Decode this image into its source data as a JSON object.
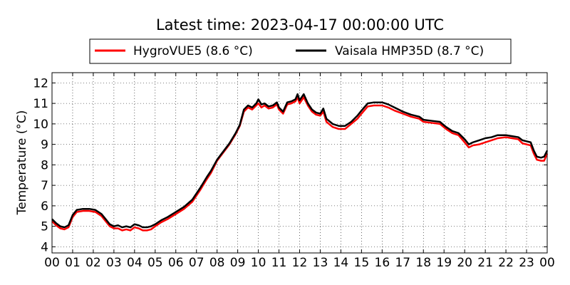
{
  "chart_data": {
    "type": "line",
    "title": "Latest time: 2023-04-17 00:00:00 UTC",
    "xlabel": "",
    "ylabel": "Temperature (°C)",
    "xlim": [
      0,
      24
    ],
    "ylim": [
      3.7,
      12.5
    ],
    "x_ticks": [
      0,
      1,
      2,
      3,
      4,
      5,
      6,
      7,
      8,
      9,
      10,
      11,
      12,
      13,
      14,
      15,
      16,
      17,
      18,
      19,
      20,
      21,
      22,
      23,
      24
    ],
    "x_tick_labels": [
      "00",
      "01",
      "02",
      "03",
      "04",
      "05",
      "06",
      "07",
      "08",
      "09",
      "10",
      "11",
      "12",
      "13",
      "14",
      "15",
      "16",
      "17",
      "18",
      "19",
      "20",
      "21",
      "22",
      "23",
      "00"
    ],
    "y_ticks": [
      4,
      5,
      6,
      7,
      8,
      9,
      10,
      11,
      12
    ],
    "y_tick_labels": [
      "4",
      "5",
      "6",
      "7",
      "8",
      "9",
      "10",
      "11",
      "12"
    ],
    "grid": true,
    "legend_position": "top-center",
    "series": [
      {
        "name": "HygroVUE5 (8.6 °C)",
        "color": "#ff0000",
        "points": [
          [
            0.0,
            5.25
          ],
          [
            0.2,
            5.05
          ],
          [
            0.4,
            4.9
          ],
          [
            0.6,
            4.85
          ],
          [
            0.8,
            4.95
          ],
          [
            1.0,
            5.45
          ],
          [
            1.2,
            5.7
          ],
          [
            1.5,
            5.75
          ],
          [
            1.8,
            5.75
          ],
          [
            2.1,
            5.7
          ],
          [
            2.4,
            5.5
          ],
          [
            2.6,
            5.25
          ],
          [
            2.8,
            5.0
          ],
          [
            3.0,
            4.9
          ],
          [
            3.2,
            4.9
          ],
          [
            3.4,
            4.8
          ],
          [
            3.6,
            4.85
          ],
          [
            3.8,
            4.8
          ],
          [
            4.0,
            4.95
          ],
          [
            4.2,
            4.9
          ],
          [
            4.4,
            4.8
          ],
          [
            4.6,
            4.8
          ],
          [
            4.8,
            4.85
          ],
          [
            5.0,
            5.0
          ],
          [
            5.3,
            5.2
          ],
          [
            5.6,
            5.35
          ],
          [
            6.0,
            5.6
          ],
          [
            6.4,
            5.85
          ],
          [
            6.8,
            6.2
          ],
          [
            7.2,
            6.8
          ],
          [
            7.5,
            7.3
          ],
          [
            7.7,
            7.6
          ],
          [
            8.0,
            8.2
          ],
          [
            8.3,
            8.6
          ],
          [
            8.6,
            9.0
          ],
          [
            8.9,
            9.5
          ],
          [
            9.1,
            9.9
          ],
          [
            9.3,
            10.6
          ],
          [
            9.5,
            10.8
          ],
          [
            9.7,
            10.7
          ],
          [
            9.9,
            10.9
          ],
          [
            10.0,
            11.0
          ],
          [
            10.15,
            10.8
          ],
          [
            10.3,
            10.9
          ],
          [
            10.5,
            10.75
          ],
          [
            10.7,
            10.8
          ],
          [
            10.9,
            10.95
          ],
          [
            11.0,
            10.7
          ],
          [
            11.2,
            10.5
          ],
          [
            11.4,
            10.95
          ],
          [
            11.6,
            11.0
          ],
          [
            11.8,
            11.1
          ],
          [
            11.9,
            11.3
          ],
          [
            12.0,
            11.0
          ],
          [
            12.2,
            11.3
          ],
          [
            12.4,
            10.9
          ],
          [
            12.6,
            10.6
          ],
          [
            12.8,
            10.45
          ],
          [
            13.0,
            10.4
          ],
          [
            13.15,
            10.6
          ],
          [
            13.3,
            10.1
          ],
          [
            13.6,
            9.85
          ],
          [
            13.9,
            9.75
          ],
          [
            14.2,
            9.75
          ],
          [
            14.5,
            10.0
          ],
          [
            14.8,
            10.25
          ],
          [
            15.0,
            10.5
          ],
          [
            15.3,
            10.85
          ],
          [
            15.6,
            10.9
          ],
          [
            16.0,
            10.9
          ],
          [
            16.3,
            10.8
          ],
          [
            16.6,
            10.65
          ],
          [
            17.0,
            10.5
          ],
          [
            17.4,
            10.35
          ],
          [
            17.8,
            10.25
          ],
          [
            18.0,
            10.1
          ],
          [
            18.4,
            10.05
          ],
          [
            18.8,
            10.0
          ],
          [
            19.1,
            9.75
          ],
          [
            19.4,
            9.55
          ],
          [
            19.7,
            9.45
          ],
          [
            20.0,
            9.1
          ],
          [
            20.2,
            8.85
          ],
          [
            20.4,
            8.95
          ],
          [
            20.7,
            9.0
          ],
          [
            21.0,
            9.1
          ],
          [
            21.3,
            9.2
          ],
          [
            21.6,
            9.3
          ],
          [
            22.0,
            9.35
          ],
          [
            22.3,
            9.3
          ],
          [
            22.6,
            9.25
          ],
          [
            22.8,
            9.05
          ],
          [
            23.0,
            9.0
          ],
          [
            23.2,
            8.95
          ],
          [
            23.35,
            8.55
          ],
          [
            23.5,
            8.25
          ],
          [
            23.7,
            8.2
          ],
          [
            23.85,
            8.2
          ],
          [
            24.0,
            8.55
          ]
        ]
      },
      {
        "name": "Vaisala HMP35D (8.7 °C)",
        "color": "#000000",
        "points": [
          [
            0.0,
            5.35
          ],
          [
            0.2,
            5.15
          ],
          [
            0.4,
            5.0
          ],
          [
            0.6,
            4.95
          ],
          [
            0.8,
            5.05
          ],
          [
            1.0,
            5.55
          ],
          [
            1.2,
            5.8
          ],
          [
            1.5,
            5.85
          ],
          [
            1.8,
            5.85
          ],
          [
            2.1,
            5.8
          ],
          [
            2.4,
            5.6
          ],
          [
            2.6,
            5.35
          ],
          [
            2.8,
            5.1
          ],
          [
            3.0,
            5.0
          ],
          [
            3.2,
            5.05
          ],
          [
            3.4,
            4.95
          ],
          [
            3.6,
            5.0
          ],
          [
            3.8,
            4.95
          ],
          [
            4.0,
            5.1
          ],
          [
            4.2,
            5.05
          ],
          [
            4.4,
            4.95
          ],
          [
            4.6,
            4.95
          ],
          [
            4.8,
            5.0
          ],
          [
            5.0,
            5.1
          ],
          [
            5.3,
            5.3
          ],
          [
            5.6,
            5.45
          ],
          [
            6.0,
            5.7
          ],
          [
            6.4,
            5.95
          ],
          [
            6.8,
            6.3
          ],
          [
            7.2,
            6.9
          ],
          [
            7.5,
            7.4
          ],
          [
            7.7,
            7.7
          ],
          [
            8.0,
            8.25
          ],
          [
            8.3,
            8.65
          ],
          [
            8.6,
            9.05
          ],
          [
            8.9,
            9.55
          ],
          [
            9.1,
            9.95
          ],
          [
            9.3,
            10.7
          ],
          [
            9.5,
            10.9
          ],
          [
            9.7,
            10.8
          ],
          [
            9.9,
            11.0
          ],
          [
            10.0,
            11.2
          ],
          [
            10.15,
            10.95
          ],
          [
            10.3,
            11.0
          ],
          [
            10.5,
            10.85
          ],
          [
            10.7,
            10.9
          ],
          [
            10.9,
            11.05
          ],
          [
            11.0,
            10.8
          ],
          [
            11.2,
            10.6
          ],
          [
            11.4,
            11.05
          ],
          [
            11.6,
            11.1
          ],
          [
            11.8,
            11.2
          ],
          [
            11.9,
            11.45
          ],
          [
            12.0,
            11.15
          ],
          [
            12.2,
            11.45
          ],
          [
            12.4,
            11.0
          ],
          [
            12.6,
            10.7
          ],
          [
            12.8,
            10.55
          ],
          [
            13.0,
            10.5
          ],
          [
            13.15,
            10.75
          ],
          [
            13.3,
            10.25
          ],
          [
            13.6,
            10.0
          ],
          [
            13.9,
            9.9
          ],
          [
            14.2,
            9.9
          ],
          [
            14.5,
            10.1
          ],
          [
            14.8,
            10.4
          ],
          [
            15.0,
            10.65
          ],
          [
            15.3,
            11.0
          ],
          [
            15.6,
            11.05
          ],
          [
            16.0,
            11.05
          ],
          [
            16.3,
            10.95
          ],
          [
            16.6,
            10.8
          ],
          [
            17.0,
            10.6
          ],
          [
            17.4,
            10.45
          ],
          [
            17.8,
            10.35
          ],
          [
            18.0,
            10.2
          ],
          [
            18.4,
            10.15
          ],
          [
            18.8,
            10.1
          ],
          [
            19.1,
            9.85
          ],
          [
            19.4,
            9.65
          ],
          [
            19.7,
            9.55
          ],
          [
            20.0,
            9.25
          ],
          [
            20.2,
            9.0
          ],
          [
            20.4,
            9.1
          ],
          [
            20.7,
            9.2
          ],
          [
            21.0,
            9.3
          ],
          [
            21.3,
            9.35
          ],
          [
            21.6,
            9.45
          ],
          [
            22.0,
            9.45
          ],
          [
            22.3,
            9.4
          ],
          [
            22.6,
            9.35
          ],
          [
            22.8,
            9.2
          ],
          [
            23.0,
            9.15
          ],
          [
            23.2,
            9.1
          ],
          [
            23.35,
            8.7
          ],
          [
            23.5,
            8.4
          ],
          [
            23.7,
            8.35
          ],
          [
            23.85,
            8.4
          ],
          [
            24.0,
            8.7
          ]
        ]
      }
    ]
  }
}
